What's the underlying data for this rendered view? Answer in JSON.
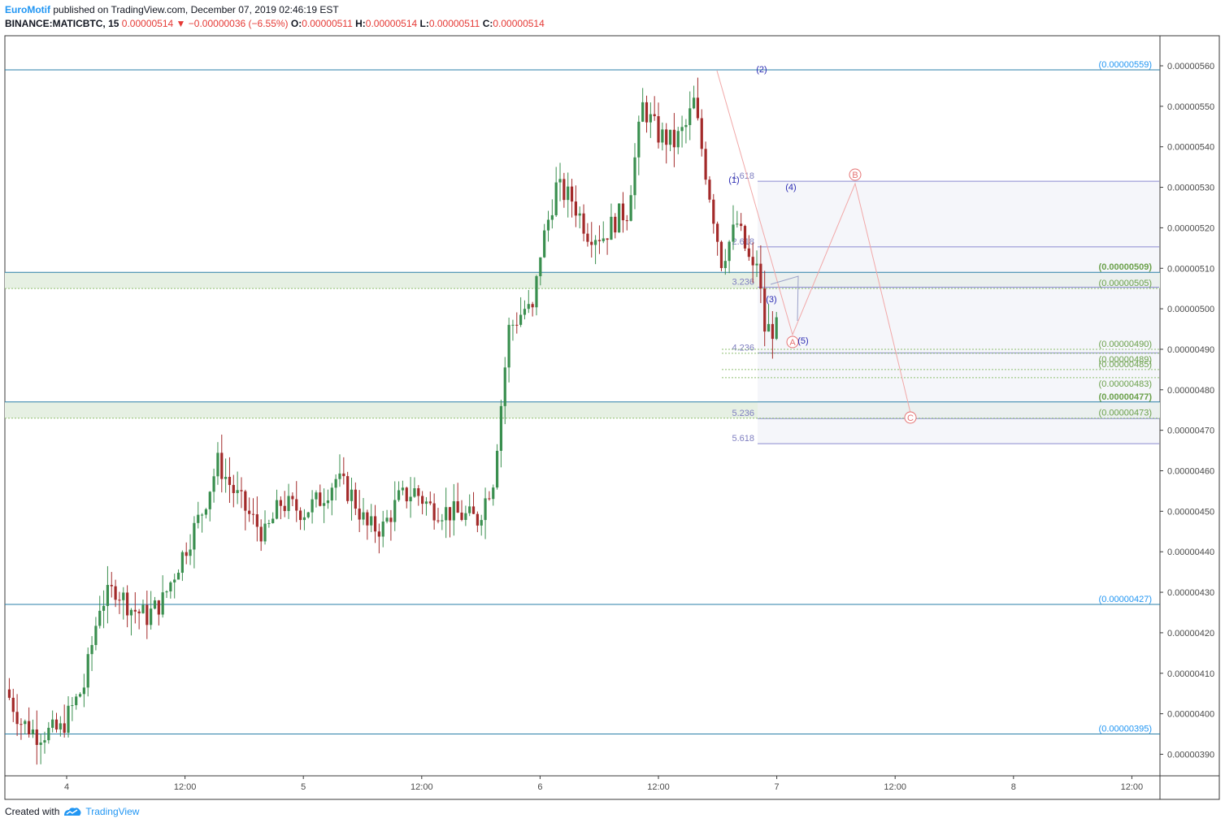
{
  "header": {
    "author": "EuroMotif",
    "published_text": "published on TradingView.com, December 07, 2019 02:46:19 EST",
    "symbol": "BINANCE:MATICBTC, 15",
    "last_price": "0.00000514",
    "change_arrow": "▼",
    "change": "−0.00000036 (−6.55%)",
    "o_label": "O:",
    "o_value": "0.00000511",
    "h_label": "H:",
    "h_value": "0.00000514",
    "l_label": "L:",
    "l_value": "0.00000511",
    "c_label": "C:",
    "c_value": "0.00000514"
  },
  "footer": {
    "created_with": "Created with",
    "brand": "TradingView"
  },
  "colors": {
    "up": "#3a8f4f",
    "down": "#a32a2a",
    "hline": "#2a7fa8",
    "fib": "#8a8ad0",
    "zone": "#e6f0e3",
    "proj": "#f1a8a8",
    "label_blue": "#2196f3",
    "label_green": "#6aa04a"
  },
  "chart_data": {
    "type": "candlestick",
    "x_ticks": [
      "4",
      "12:00",
      "5",
      "12:00",
      "6",
      "12:00",
      "7",
      "12:00",
      "8",
      "12:00"
    ],
    "y_ticks": [
      "0.00000560",
      "0.00000550",
      "0.00000540",
      "0.00000530",
      "0.00000520",
      "0.00000510",
      "0.00000500",
      "0.00000490",
      "0.00000480",
      "0.00000470",
      "0.00000460",
      "0.00000450",
      "0.00000440",
      "0.00000430",
      "0.00000420",
      "0.00000410",
      "0.00000400",
      "0.00000390"
    ],
    "y_range": [
      3.83e-06,
      5.67e-06
    ],
    "price_path": [
      [
        0,
        406
      ],
      [
        4,
        398
      ],
      [
        8,
        395
      ],
      [
        14,
        396
      ],
      [
        20,
        407
      ],
      [
        24,
        427
      ],
      [
        28,
        431
      ],
      [
        32,
        426
      ],
      [
        36,
        424
      ],
      [
        40,
        428
      ],
      [
        44,
        437
      ],
      [
        50,
        450
      ],
      [
        54,
        462
      ],
      [
        58,
        455
      ],
      [
        62,
        449
      ],
      [
        66,
        444
      ],
      [
        70,
        452
      ],
      [
        76,
        450
      ],
      [
        80,
        453
      ],
      [
        84,
        458
      ],
      [
        88,
        454
      ],
      [
        92,
        446
      ],
      [
        96,
        446
      ],
      [
        100,
        453
      ],
      [
        104,
        455
      ],
      [
        108,
        451
      ],
      [
        112,
        450
      ],
      [
        116,
        449
      ],
      [
        120,
        448
      ],
      [
        124,
        458
      ],
      [
        128,
        495
      ],
      [
        132,
        500
      ],
      [
        134,
        499
      ],
      [
        136,
        514
      ],
      [
        140,
        530
      ],
      [
        144,
        527
      ],
      [
        148,
        519
      ],
      [
        152,
        518
      ],
      [
        156,
        523
      ],
      [
        158,
        524
      ],
      [
        162,
        550
      ],
      [
        166,
        543
      ],
      [
        170,
        541
      ],
      [
        173,
        545
      ],
      [
        175,
        551
      ],
      [
        178,
        534
      ],
      [
        182,
        512
      ],
      [
        186,
        521
      ],
      [
        190,
        509
      ],
      [
        191,
        512
      ],
      [
        193,
        495
      ]
    ],
    "candle_count": 196,
    "horizontal_levels": [
      {
        "label": "(0.00000559)",
        "price": 5.59e-06,
        "style": "solid"
      },
      {
        "label": "(0.00000509)",
        "price": 5.09e-06,
        "style": "solid"
      },
      {
        "label": "(0.00000505)",
        "price": 5.05e-06,
        "style": "dotted"
      },
      {
        "label": "(0.00000490)",
        "price": 4.9e-06,
        "style": "dotted"
      },
      {
        "label": "(0.00000489)",
        "price": 4.89e-06,
        "style": "dotted"
      },
      {
        "label": "(0.00000485)",
        "price": 4.85e-06,
        "style": "dotted"
      },
      {
        "label": "(0.00000483)",
        "price": 4.83e-06,
        "style": "dotted"
      },
      {
        "label": "(0.00000477)",
        "price": 4.77e-06,
        "style": "solid"
      },
      {
        "label": "(0.00000473)",
        "price": 4.73e-06,
        "style": "dotted"
      },
      {
        "label": "(0.00000427)",
        "price": 4.27e-06,
        "style": "solid"
      },
      {
        "label": "(0.00000395)",
        "price": 3.95e-06,
        "style": "solid"
      }
    ],
    "fib_extensions": [
      {
        "label": "1.618",
        "price": 5.315e-06
      },
      {
        "label": "2.618",
        "price": 5.153e-06
      },
      {
        "label": "3.236",
        "price": 5.053e-06
      },
      {
        "label": "4.236",
        "price": 4.891e-06
      },
      {
        "label": "5.236",
        "price": 4.729e-06
      },
      {
        "label": "5.618",
        "price": 4.667e-06
      }
    ],
    "elliott_labels": [
      "(1)",
      "(2)",
      "(3)",
      "(4)",
      "(5)"
    ],
    "abc_labels": [
      "A",
      "B",
      "C"
    ]
  }
}
